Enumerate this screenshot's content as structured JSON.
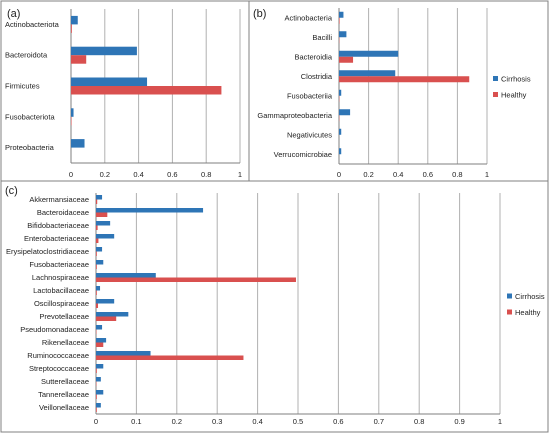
{
  "colors": {
    "cirrhosis": "#2e75b6",
    "healthy": "#d9504f",
    "grid": "#b0b0b0",
    "axis": "#7f7f7f",
    "text": "#222222",
    "frame": "#808080"
  },
  "chart_data": [
    {
      "panel_label": "(a)",
      "type": "bar",
      "orientation": "horizontal",
      "categories": [
        "Actinobacteriota",
        "Bacteroidota",
        "Firmicutes",
        "Fusobacteriota",
        "Proteobacteria"
      ],
      "series": [
        {
          "key": "cirrhosis",
          "values": [
            0.04,
            0.39,
            0.45,
            0.015,
            0.08
          ]
        },
        {
          "key": "healthy",
          "values": [
            0.005,
            0.09,
            0.89,
            0.003,
            0.0
          ]
        }
      ],
      "xlim": [
        0,
        1
      ],
      "xticks": [
        "0",
        "0.2",
        "0.4",
        "0.6",
        "0.8",
        "1"
      ],
      "grid": true,
      "legend": false
    },
    {
      "panel_label": "(b)",
      "type": "bar",
      "orientation": "horizontal",
      "categories": [
        "Actinobacteria",
        "Bacilli",
        "Bacteroidia",
        "Clostridia",
        "Fusobacteriia",
        "Gammaproteobacteria",
        "Negativicutes",
        "Verrucomicrobiae"
      ],
      "series": [
        {
          "key": "cirrhosis",
          "name": "Cirrhosis",
          "values": [
            0.03,
            0.05,
            0.4,
            0.38,
            0.015,
            0.075,
            0.015,
            0.015
          ]
        },
        {
          "key": "healthy",
          "name": "Healthy",
          "values": [
            0.004,
            0.002,
            0.095,
            0.88,
            0.002,
            0.002,
            0.0,
            0.0
          ]
        }
      ],
      "xlim": [
        0,
        1
      ],
      "xticks": [
        "0",
        "0.2",
        "0.4",
        "0.6",
        "0.8",
        "1"
      ],
      "grid": true,
      "legend": "right"
    },
    {
      "panel_label": "(c)",
      "type": "bar",
      "orientation": "horizontal",
      "categories": [
        "Akkermansiaceae",
        "Bacteroidaceae",
        "Bifidobacteriaceae",
        "Enterobacteriaceae",
        "Erysipelatoclostridiaceae",
        "Fusobacteriaceae",
        "Lachnospiraceae",
        "Lactobacillaceae",
        "Oscillospiraceae",
        "Prevotellaceae",
        "Pseudomonadaceae",
        "Rikenellaceae",
        "Ruminococcaceae",
        "Streptococcaceae",
        "Sutterellaceae",
        "Tannerellaceae",
        "Veillonellaceae"
      ],
      "series": [
        {
          "key": "cirrhosis",
          "name": "Cirrhosis",
          "values": [
            0.015,
            0.265,
            0.035,
            0.045,
            0.015,
            0.018,
            0.148,
            0.01,
            0.045,
            0.08,
            0.015,
            0.025,
            0.135,
            0.018,
            0.012,
            0.018,
            0.012
          ]
        },
        {
          "key": "healthy",
          "name": "Healthy",
          "values": [
            0.003,
            0.028,
            0.004,
            0.006,
            0.002,
            0.002,
            0.495,
            0.002,
            0.005,
            0.05,
            0.001,
            0.018,
            0.365,
            0.002,
            0.001,
            0.002,
            0.002
          ]
        }
      ],
      "xlim": [
        0,
        1
      ],
      "xticks": [
        "0",
        "0.1",
        "0.2",
        "0.3",
        "0.4",
        "0.5",
        "0.6",
        "0.7",
        "0.8",
        "0.9",
        "1"
      ],
      "grid": true,
      "legend": "right"
    }
  ]
}
